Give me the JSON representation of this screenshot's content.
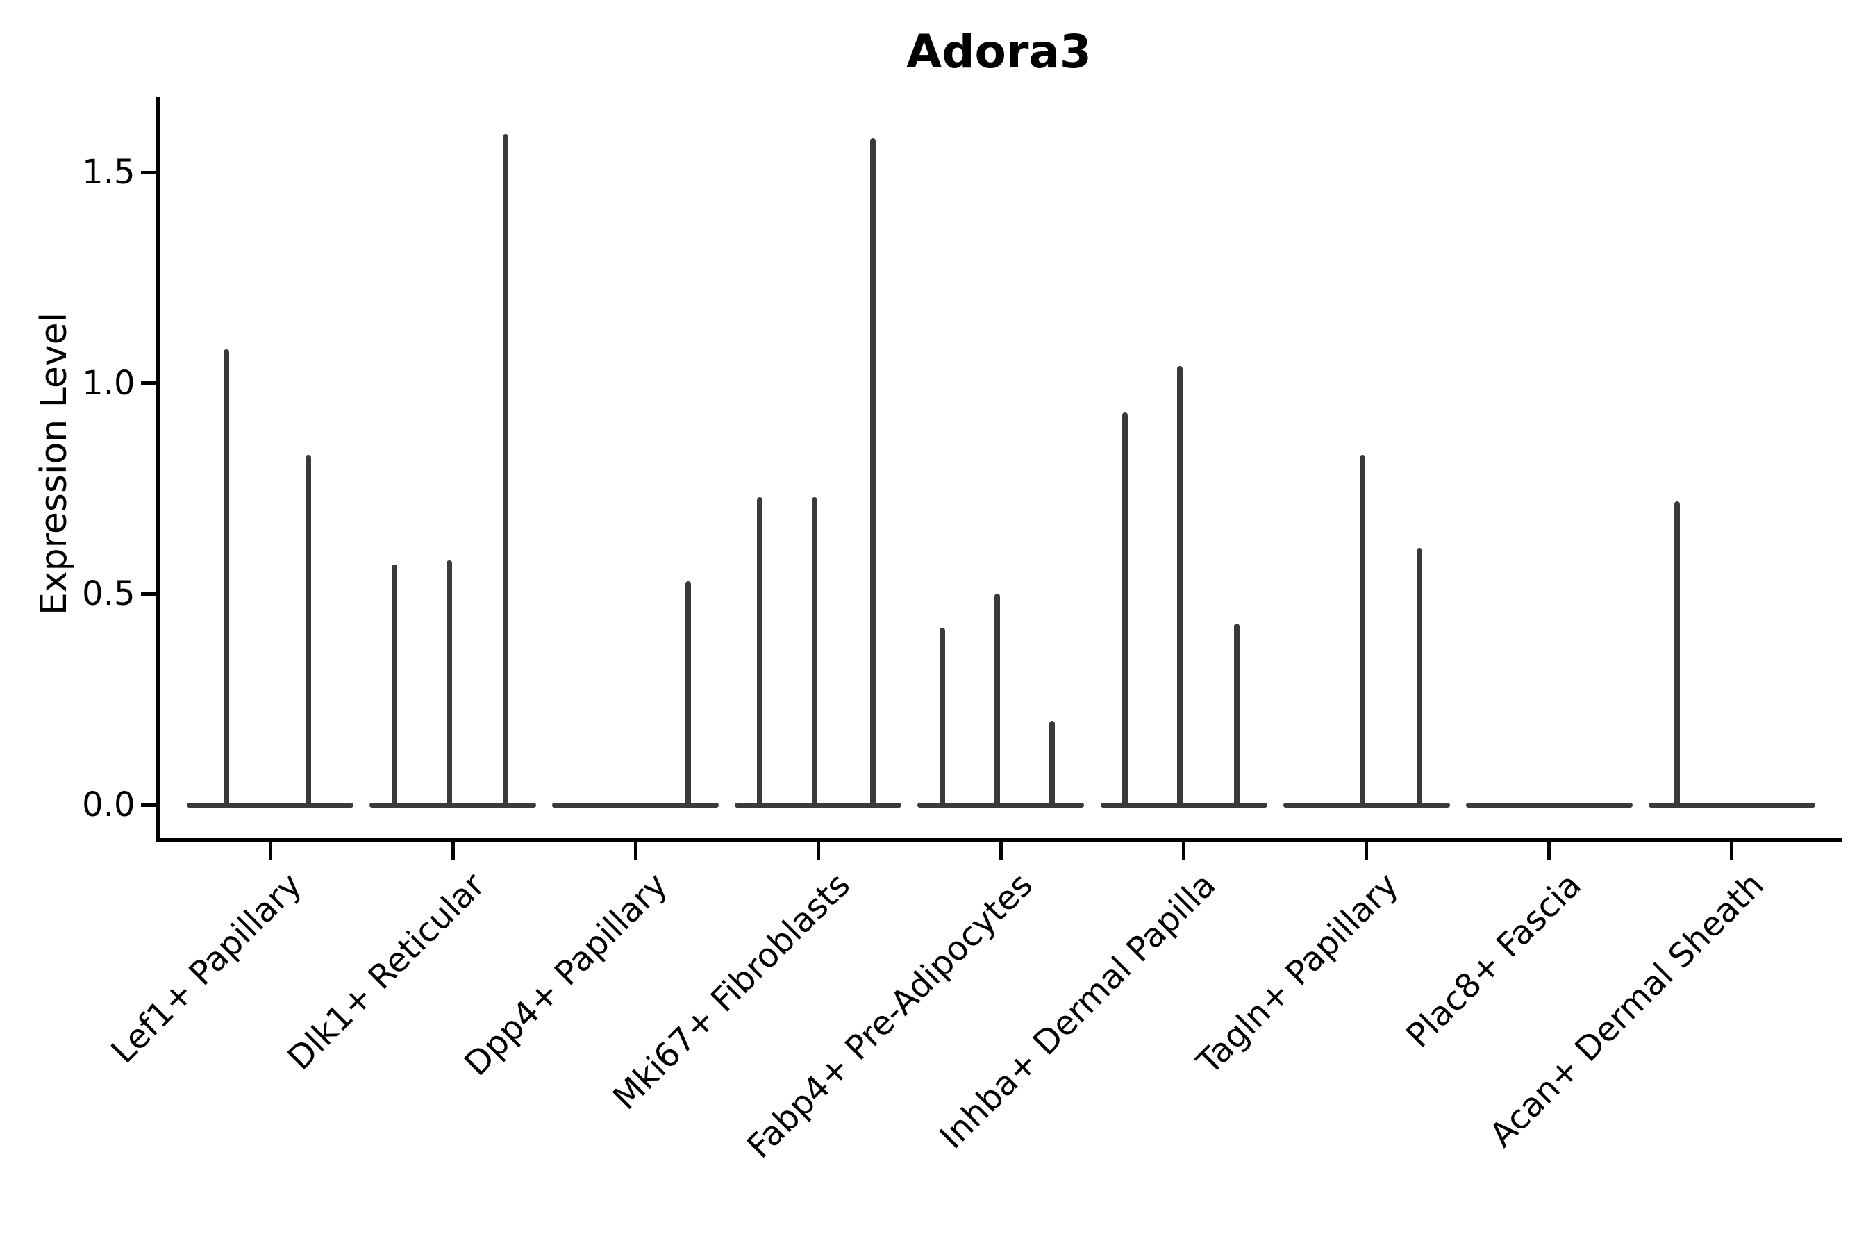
{
  "chart_data": {
    "type": "violin",
    "title": "Adora3",
    "ylabel": "Expression Level",
    "xlabel": "",
    "ylim": [
      0,
      1.68
    ],
    "yticks": [
      {
        "label": "0.0",
        "value": 0.0
      },
      {
        "label": "0.5",
        "value": 0.5
      },
      {
        "label": "1.0",
        "value": 1.0
      },
      {
        "label": "1.5",
        "value": 1.5
      }
    ],
    "grid": false,
    "legend": "none",
    "violin_color": "#3a3a3a",
    "axis_color": "#000000",
    "background_color": "#ffffff",
    "categories": [
      "Lef1+ Papillary",
      "Dlk1+ Reticular",
      "Dpp4+ Papillary",
      "Mki67+ Fibroblasts",
      "Fabp4+ Pre-Adipocytes",
      "Inhba+ Dermal Papilla",
      "Tagln+ Papillary",
      "Plac8+ Fascia",
      "Acan+ Dermal Sheath"
    ],
    "series": [
      {
        "category": "Lef1+ Papillary",
        "zero_bulk": true,
        "spikes": [
          {
            "offset": -0.24,
            "value": 1.08
          },
          {
            "offset": 0.21,
            "value": 0.83
          }
        ]
      },
      {
        "category": "Dlk1+ Reticular",
        "zero_bulk": true,
        "spikes": [
          {
            "offset": -0.32,
            "value": 0.57
          },
          {
            "offset": -0.02,
            "value": 0.58
          },
          {
            "offset": 0.29,
            "value": 1.59
          }
        ]
      },
      {
        "category": "Dpp4+ Papillary",
        "zero_bulk": true,
        "spikes": [
          {
            "offset": 0.29,
            "value": 0.53
          }
        ]
      },
      {
        "category": "Mki67+ Fibroblasts",
        "zero_bulk": true,
        "spikes": [
          {
            "offset": -0.32,
            "value": 0.73
          },
          {
            "offset": -0.02,
            "value": 0.73
          },
          {
            "offset": 0.3,
            "value": 1.58
          }
        ]
      },
      {
        "category": "Fabp4+ Pre-Adipocytes",
        "zero_bulk": true,
        "spikes": [
          {
            "offset": -0.32,
            "value": 0.42
          },
          {
            "offset": -0.02,
            "value": 0.5
          },
          {
            "offset": 0.28,
            "value": 0.2
          }
        ]
      },
      {
        "category": "Inhba+ Dermal Papilla",
        "zero_bulk": true,
        "spikes": [
          {
            "offset": -0.32,
            "value": 0.93
          },
          {
            "offset": -0.02,
            "value": 1.04
          },
          {
            "offset": 0.29,
            "value": 0.43
          }
        ]
      },
      {
        "category": "Tagln+ Papillary",
        "zero_bulk": true,
        "spikes": [
          {
            "offset": -0.02,
            "value": 0.83
          },
          {
            "offset": 0.29,
            "value": 0.61
          }
        ]
      },
      {
        "category": "Plac8+ Fascia",
        "zero_bulk": true,
        "spikes": []
      },
      {
        "category": "Acan+ Dermal Sheath",
        "zero_bulk": true,
        "spikes": [
          {
            "offset": -0.3,
            "value": 0.72
          }
        ]
      }
    ]
  }
}
